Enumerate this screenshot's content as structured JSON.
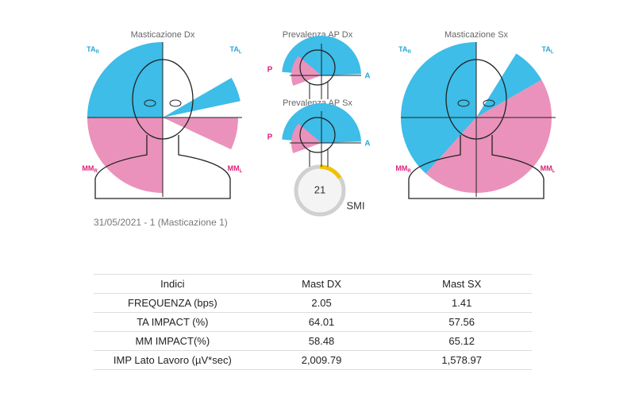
{
  "left_diagram": {
    "title": "Masticazione Dx",
    "labels": [
      {
        "text": "TA",
        "sub": "R"
      },
      {
        "text": "TA",
        "sub": "L"
      },
      {
        "text": "MM",
        "sub": "R"
      },
      {
        "text": "MM",
        "sub": "L"
      }
    ]
  },
  "ap_dx": {
    "title": "Prevalenza AP Dx",
    "p": "P",
    "a": "A"
  },
  "ap_sx": {
    "title": "Prevalenza AP Sx",
    "p": "P",
    "a": "A"
  },
  "smi": {
    "value": 21,
    "label": "SMI"
  },
  "right_diagram": {
    "title": "Masticazione Sx",
    "labels": [
      {
        "text": "TA",
        "sub": "R"
      },
      {
        "text": "TA",
        "sub": "L"
      },
      {
        "text": "MM",
        "sub": "R"
      },
      {
        "text": "MM",
        "sub": "L"
      }
    ]
  },
  "date_label": "31/05/2021 - 1  (Masticazione 1)",
  "table": {
    "header": [
      "Indici",
      "Mast DX",
      "Mast SX"
    ],
    "rows": [
      [
        "FREQUENZA (bps)",
        "2.05",
        "1.41"
      ],
      [
        "TA IMPACT (%)",
        "64.01",
        "57.56"
      ],
      [
        "MM IMPACT(%)",
        "58.48",
        "65.12"
      ],
      [
        "IMP Lato Lavoro (µV*sec)",
        "2,009.79",
        "1,578.97"
      ]
    ]
  }
}
